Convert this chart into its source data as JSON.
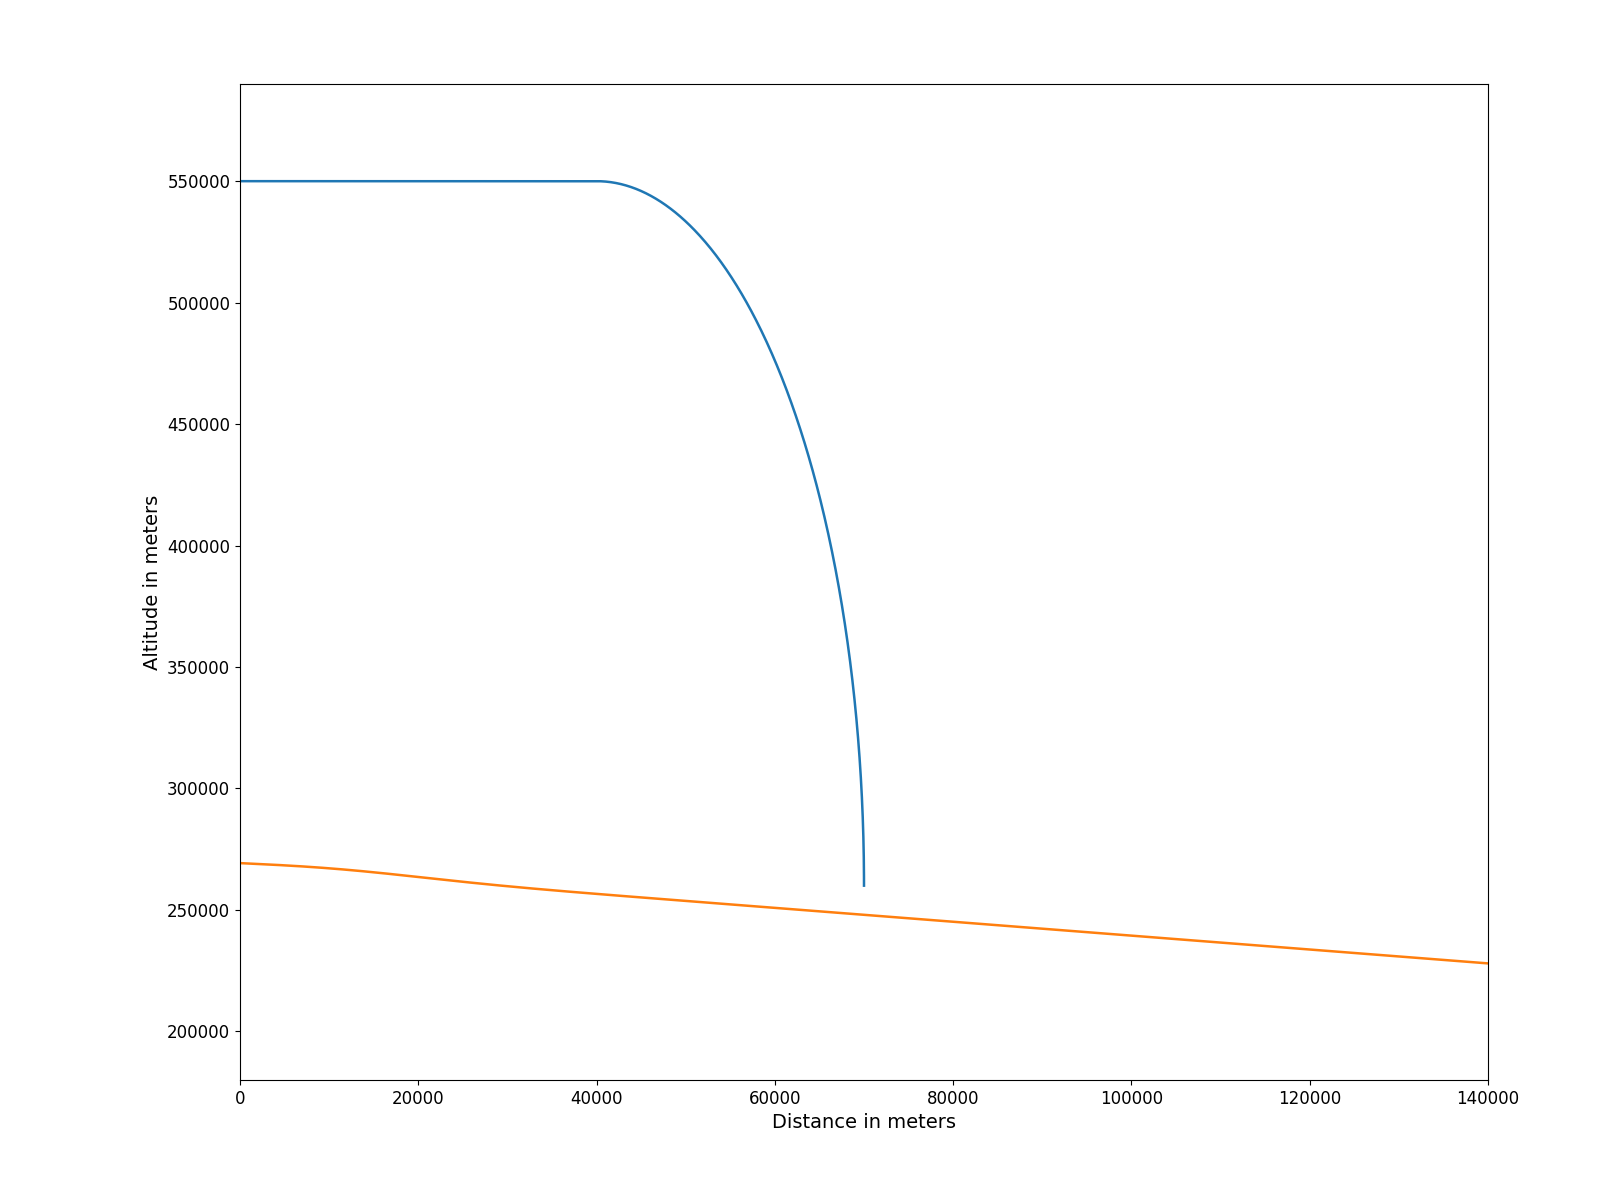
{
  "title": "",
  "xlabel": "Distance in meters",
  "ylabel": "Altitude in meters",
  "xlim": [
    0,
    140000
  ],
  "ylim": [
    180000,
    590000
  ],
  "blue_line_color": "#1f77b4",
  "orange_line_color": "#ff7f0e",
  "linewidth": 1.8,
  "figsize": [
    16,
    12
  ],
  "dpi": 100,
  "xticks": [
    0,
    20000,
    40000,
    60000,
    80000,
    100000,
    120000,
    140000
  ],
  "yticks": [
    200000,
    250000,
    300000,
    350000,
    400000,
    450000,
    500000,
    550000
  ]
}
